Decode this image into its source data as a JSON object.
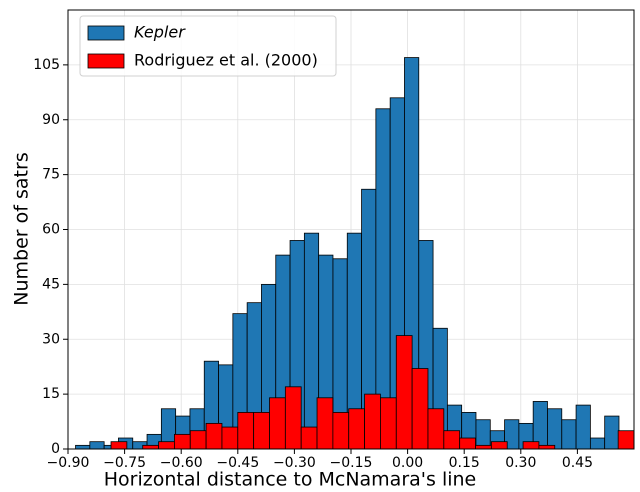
{
  "chart_data": {
    "type": "histogram",
    "xlabel": "Horizontal distance to McNamara's line",
    "ylabel": "Number of satrs",
    "xlim": [
      -0.9,
      0.6
    ],
    "ylim": [
      0,
      120
    ],
    "xticks": [
      {
        "value": -0.9,
        "label": "−0.90"
      },
      {
        "value": -0.75,
        "label": "−0.75"
      },
      {
        "value": -0.6,
        "label": "−0.60"
      },
      {
        "value": -0.45,
        "label": "−0.45"
      },
      {
        "value": -0.3,
        "label": "−0.30"
      },
      {
        "value": -0.15,
        "label": "−0.15"
      },
      {
        "value": 0,
        "label": "0.00"
      },
      {
        "value": 0.15,
        "label": "0.15"
      },
      {
        "value": 0.3,
        "label": "0.30"
      },
      {
        "value": 0.45,
        "label": "0.45"
      }
    ],
    "yticks": [
      0,
      15,
      30,
      45,
      60,
      75,
      90,
      105
    ],
    "grid": true,
    "legend": "upper left",
    "series": [
      {
        "name": "Kepler",
        "color": "#1f77b4",
        "bins": [
          -0.88,
          -0.8421,
          -0.8042,
          -0.7663,
          -0.7284,
          -0.6905,
          -0.6526,
          -0.6147,
          -0.5768,
          -0.5389,
          -0.501,
          -0.4631,
          -0.4252,
          -0.3873,
          -0.3494,
          -0.3115,
          -0.2736,
          -0.2357,
          -0.1978,
          -0.1599,
          -0.122,
          -0.0841,
          -0.0462,
          -0.0083,
          0.0296,
          0.0675,
          0.1054,
          0.1433,
          0.1812,
          0.2191,
          0.257,
          0.2949,
          0.3328,
          0.3707,
          0.4086,
          0.4465,
          0.4844,
          0.5223,
          0.5602,
          0.5981
        ],
        "values": [
          1,
          2,
          1,
          3,
          2,
          4,
          11,
          9,
          11,
          24,
          23,
          37,
          40,
          45,
          53,
          57,
          59,
          53,
          52,
          59,
          71,
          93,
          96,
          107,
          57,
          33,
          12,
          10,
          8,
          5,
          8,
          7,
          13,
          11,
          8,
          12,
          3,
          9,
          3
        ]
      },
      {
        "name": "Rodriguez et al. (2000)",
        "color": "#ff0000",
        "bins": [
          -0.786,
          -0.744,
          -0.702,
          -0.66,
          -0.618,
          -0.576,
          -0.534,
          -0.492,
          -0.45,
          -0.408,
          -0.366,
          -0.324,
          -0.282,
          -0.24,
          -0.198,
          -0.156,
          -0.114,
          -0.072,
          -0.03,
          0.012,
          0.054,
          0.096,
          0.138,
          0.18,
          0.222,
          0.264,
          0.306,
          0.348,
          0.39,
          0.432,
          0.474,
          0.516,
          0.558,
          0.6
        ],
        "values": [
          2,
          0,
          1,
          2,
          4,
          5,
          7,
          6,
          10,
          10,
          14,
          17,
          6,
          14,
          10,
          11,
          15,
          14,
          31,
          22,
          11,
          5,
          3,
          1,
          2,
          0,
          2,
          1,
          0,
          0,
          0,
          0,
          5
        ]
      }
    ]
  }
}
